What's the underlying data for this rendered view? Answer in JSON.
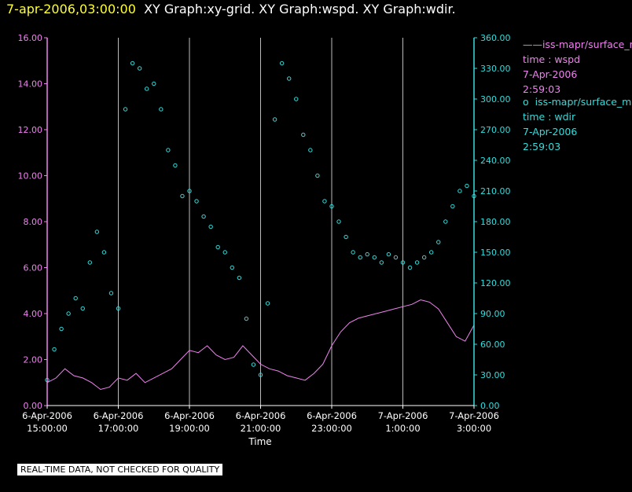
{
  "header": {
    "timestamp": "7-apr-2006,03:00:00",
    "graphs": "XY Graph:xy-grid.  XY Graph:wspd.  XY Graph:wdir."
  },
  "legend": [
    {
      "marker": "——",
      "name": "iss-mapr/surface_m",
      "var": "time : wspd",
      "date": "7-Apr-2006",
      "time": "2:59:03",
      "color": "#ee82ee"
    },
    {
      "marker": "o",
      "name": "iss-mapr/surface_m",
      "var": "time : wdir",
      "date": "7-Apr-2006",
      "time": "2:59:03",
      "color": "#33dddd"
    }
  ],
  "footer": "REAL-TIME DATA, NOT CHECKED FOR QUALITY",
  "chart_data": {
    "type": "line",
    "xlabel": "Time",
    "x_range_hours": [
      0,
      12
    ],
    "x_ticks": [
      {
        "hour": 0,
        "date": "6-Apr-2006",
        "time": "15:00:00"
      },
      {
        "hour": 2,
        "date": "6-Apr-2006",
        "time": "17:00:00"
      },
      {
        "hour": 4,
        "date": "6-Apr-2006",
        "time": "19:00:00"
      },
      {
        "hour": 6,
        "date": "6-Apr-2006",
        "time": "21:00:00"
      },
      {
        "hour": 8,
        "date": "6-Apr-2006",
        "time": "23:00:00"
      },
      {
        "hour": 10,
        "date": "7-Apr-2006",
        "time": "1:00:00"
      },
      {
        "hour": 12,
        "date": "7-Apr-2006",
        "time": "3:00:00"
      }
    ],
    "y_left": {
      "label": "wspd",
      "range": [
        0,
        16
      ],
      "ticks": [
        "0.00",
        "2.00",
        "4.00",
        "6.00",
        "8.00",
        "10.00",
        "12.00",
        "14.00",
        "16.00"
      ],
      "color": "#ee82ee"
    },
    "y_right": {
      "label": "wdir",
      "range": [
        0,
        360
      ],
      "ticks": [
        "0.00",
        "30.00",
        "60.00",
        "90.00",
        "120.00",
        "150.00",
        "180.00",
        "210.00",
        "240.00",
        "270.00",
        "300.00",
        "330.00",
        "360.00"
      ],
      "color": "#33dddd"
    },
    "grid": "vertical",
    "series": [
      {
        "name": "wspd",
        "axis": "left",
        "style": "line",
        "color": "#ee82ee",
        "x": [
          0,
          0.25,
          0.5,
          0.75,
          1,
          1.25,
          1.5,
          1.75,
          2,
          2.25,
          2.5,
          2.75,
          3,
          3.25,
          3.5,
          3.75,
          4,
          4.25,
          4.5,
          4.75,
          5,
          5.25,
          5.5,
          5.75,
          6,
          6.25,
          6.5,
          6.75,
          7,
          7.25,
          7.5,
          7.75,
          8,
          8.25,
          8.5,
          8.75,
          9,
          9.25,
          9.5,
          9.75,
          10,
          10.25,
          10.5,
          10.75,
          11,
          11.25,
          11.5,
          11.75,
          12
        ],
        "y": [
          1.0,
          1.2,
          1.6,
          1.3,
          1.2,
          1.0,
          0.7,
          0.8,
          1.2,
          1.1,
          1.4,
          1.0,
          1.2,
          1.4,
          1.6,
          2.0,
          2.4,
          2.3,
          2.6,
          2.2,
          2.0,
          2.1,
          2.6,
          2.2,
          1.8,
          1.6,
          1.5,
          1.3,
          1.2,
          1.1,
          1.4,
          1.8,
          2.6,
          3.2,
          3.6,
          3.8,
          3.9,
          4.0,
          4.1,
          4.2,
          4.3,
          4.4,
          4.6,
          4.5,
          4.2,
          3.6,
          3.0,
          2.8,
          3.5
        ]
      },
      {
        "name": "wdir",
        "axis": "right",
        "style": "markers",
        "color": "#33dddd",
        "x": [
          0,
          0.2,
          0.4,
          0.6,
          0.8,
          1.0,
          1.2,
          1.4,
          1.6,
          1.8,
          2.0,
          2.2,
          2.4,
          2.6,
          2.8,
          3.0,
          3.2,
          3.4,
          3.6,
          3.8,
          4.0,
          4.2,
          4.4,
          4.6,
          4.8,
          5.0,
          5.2,
          5.4,
          5.6,
          5.8,
          6.0,
          6.2,
          6.4,
          6.6,
          6.8,
          7.0,
          7.2,
          7.4,
          7.6,
          7.8,
          8.0,
          8.2,
          8.4,
          8.6,
          8.8,
          9.0,
          9.2,
          9.4,
          9.6,
          9.8,
          10.0,
          10.2,
          10.4,
          10.6,
          10.8,
          11.0,
          11.2,
          11.4,
          11.6,
          11.8,
          12.0
        ],
        "y": [
          25,
          55,
          75,
          90,
          105,
          95,
          140,
          170,
          150,
          110,
          95,
          290,
          335,
          330,
          310,
          315,
          290,
          250,
          235,
          205,
          210,
          200,
          185,
          175,
          155,
          150,
          135,
          125,
          85,
          40,
          30,
          100,
          280,
          335,
          320,
          300,
          265,
          250,
          225,
          200,
          195,
          180,
          165,
          150,
          145,
          148,
          145,
          140,
          148,
          145,
          140,
          135,
          140,
          145,
          150,
          160,
          180,
          195,
          210,
          215,
          205
        ]
      }
    ]
  }
}
